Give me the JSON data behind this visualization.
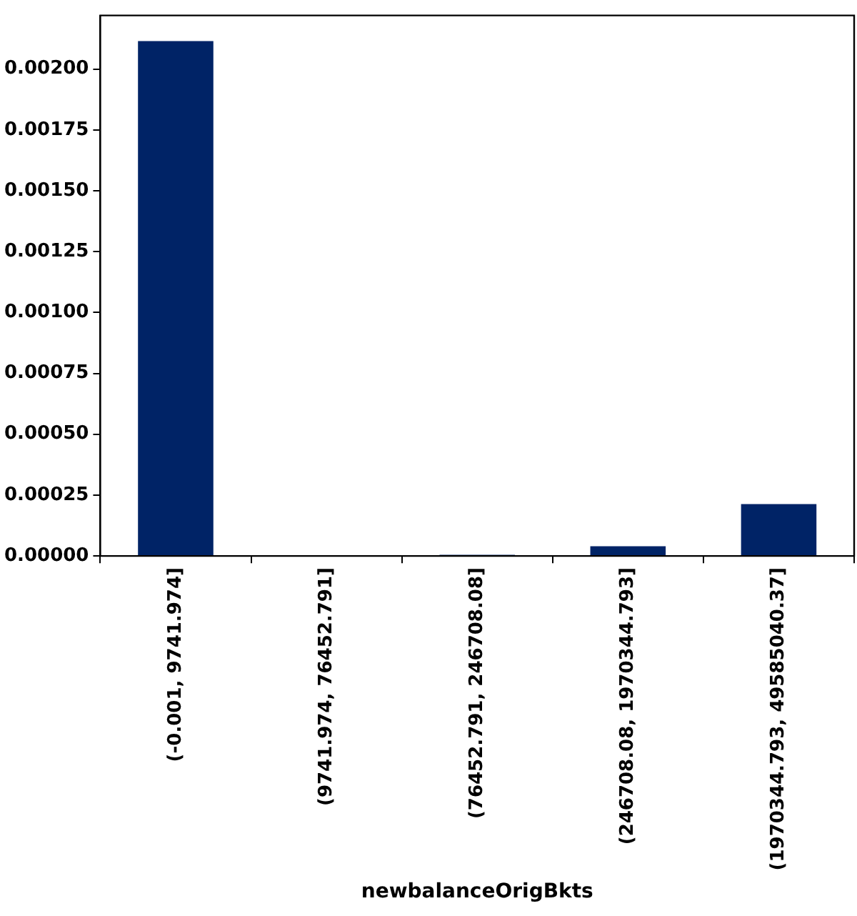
{
  "chart_data": {
    "type": "bar",
    "xlabel": "newbalanceOrigBkts",
    "categories": [
      "(-0.001, 9741.974]",
      "(9741.974, 76452.791]",
      "(76452.791, 246708.08]",
      "(246708.08, 1970344.793]",
      "(1970344.793, 49585040.37]"
    ],
    "values": [
      0.002115,
      0,
      5e-06,
      4e-05,
      0.000213
    ],
    "color": "#002366",
    "ylim": [
      0,
      0.00222
    ],
    "yticks": [
      {
        "value": 0,
        "label": "0.00000"
      },
      {
        "value": 0.00025,
        "label": "0.00025"
      },
      {
        "value": 0.0005,
        "label": "0.00050"
      },
      {
        "value": 0.00075,
        "label": "0.00075"
      },
      {
        "value": 0.001,
        "label": "0.00100"
      },
      {
        "value": 0.00125,
        "label": "0.00125"
      },
      {
        "value": 0.0015,
        "label": "0.00150"
      },
      {
        "value": 0.00175,
        "label": "0.00175"
      },
      {
        "value": 0.002,
        "label": "0.00200"
      }
    ],
    "grid": false,
    "legend": false
  }
}
